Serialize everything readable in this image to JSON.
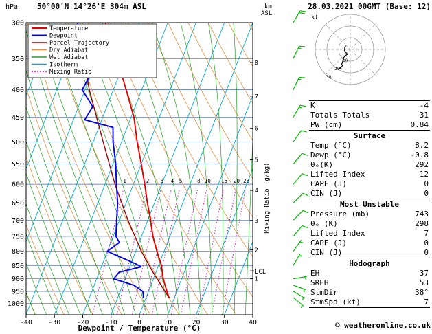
{
  "header": {
    "pressure_unit": "hPa",
    "title": "50°00'N 14°26'E 304m ASL",
    "km_label": "km",
    "asl_label": "ASL",
    "datetime": "28.03.2021 00GMT (Base: 12)"
  },
  "colors": {
    "temperature": "#e60000",
    "dewpoint": "#0000e6",
    "parcel": "#990000",
    "dry_adiabat": "#e09040",
    "wet_adiabat": "#22a022",
    "isotherm": "#00aacc",
    "mixing_ratio": "#cc00bb",
    "wind_barb": "#00bb00",
    "pressure_line": "#4466bb"
  },
  "legend": [
    {
      "label": "Temperature",
      "color": "#e60000",
      "dashed": false
    },
    {
      "label": "Dewpoint",
      "color": "#0000e6",
      "dashed": false
    },
    {
      "label": "Parcel Trajectory",
      "color": "#990000",
      "dashed": false
    },
    {
      "label": "Dry Adiabat",
      "color": "#e09040",
      "dashed": false
    },
    {
      "label": "Wet Adiabat",
      "color": "#22a022",
      "dashed": false
    },
    {
      "label": "Isotherm",
      "color": "#00aacc",
      "dashed": false
    },
    {
      "label": "Mixing Ratio",
      "color": "#cc00bb",
      "dashed": true
    }
  ],
  "axes": {
    "xlabel": "Dewpoint / Temperature (°C)",
    "x_ticks": [
      -40,
      -30,
      -20,
      -10,
      0,
      10,
      20,
      30,
      40
    ],
    "pressure_ticks": [
      300,
      350,
      400,
      450,
      500,
      550,
      600,
      650,
      700,
      750,
      800,
      850,
      900,
      950,
      1000
    ],
    "km_ticks": [
      1,
      2,
      3,
      4,
      5,
      6,
      7,
      8
    ],
    "mixing_ratio_label": "Mixing Ratio (g/kg)",
    "mixing_ratio_values": [
      1,
      2,
      3,
      4,
      5,
      8,
      10,
      15,
      20,
      25
    ],
    "lcl_label": "LCL"
  },
  "chart_data": {
    "type": "skewt-log-p",
    "pressure_range_hpa": [
      300,
      1050
    ],
    "temp_axis_range_c": [
      -40,
      40
    ],
    "lcl_pressure_hpa": 870,
    "temperature_profile": [
      [
        977,
        8.2
      ],
      [
        950,
        6.5
      ],
      [
        925,
        5
      ],
      [
        900,
        3.5
      ],
      [
        850,
        1
      ],
      [
        800,
        -2.5
      ],
      [
        750,
        -6
      ],
      [
        700,
        -9
      ],
      [
        650,
        -12.5
      ],
      [
        600,
        -16
      ],
      [
        550,
        -20
      ],
      [
        500,
        -24.5
      ],
      [
        450,
        -29
      ],
      [
        400,
        -35.5
      ],
      [
        350,
        -43
      ],
      [
        300,
        -52
      ]
    ],
    "dewpoint_profile": [
      [
        977,
        -0.8
      ],
      [
        950,
        -2
      ],
      [
        925,
        -6
      ],
      [
        900,
        -14
      ],
      [
        875,
        -13
      ],
      [
        855,
        -6
      ],
      [
        845,
        -8
      ],
      [
        800,
        -20
      ],
      [
        770,
        -17
      ],
      [
        750,
        -19
      ],
      [
        700,
        -21
      ],
      [
        650,
        -23
      ],
      [
        600,
        -26
      ],
      [
        550,
        -29
      ],
      [
        500,
        -33
      ],
      [
        470,
        -35
      ],
      [
        455,
        -46
      ],
      [
        430,
        -45
      ],
      [
        400,
        -51
      ],
      [
        370,
        -50
      ],
      [
        350,
        -58
      ],
      [
        330,
        -55
      ],
      [
        300,
        -62
      ]
    ],
    "parcel_profile": [
      [
        977,
        8.2
      ],
      [
        870,
        -1.5
      ],
      [
        800,
        -8
      ],
      [
        700,
        -17
      ],
      [
        600,
        -26.5
      ],
      [
        500,
        -36.5
      ],
      [
        400,
        -48.5
      ],
      [
        300,
        -62
      ]
    ],
    "wind_barbs": [
      {
        "p": 300,
        "dir_deg": 30,
        "speed_kt": 20
      },
      {
        "p": 350,
        "dir_deg": 25,
        "speed_kt": 15
      },
      {
        "p": 400,
        "dir_deg": 25,
        "speed_kt": 15
      },
      {
        "p": 450,
        "dir_deg": 30,
        "speed_kt": 15
      },
      {
        "p": 500,
        "dir_deg": 35,
        "speed_kt": 10
      },
      {
        "p": 550,
        "dir_deg": 40,
        "speed_kt": 10
      },
      {
        "p": 600,
        "dir_deg": 40,
        "speed_kt": 10
      },
      {
        "p": 650,
        "dir_deg": 45,
        "speed_kt": 10
      },
      {
        "p": 700,
        "dir_deg": 45,
        "speed_kt": 10
      },
      {
        "p": 750,
        "dir_deg": 40,
        "speed_kt": 10
      },
      {
        "p": 800,
        "dir_deg": 35,
        "speed_kt": 5
      },
      {
        "p": 850,
        "dir_deg": 30,
        "speed_kt": 5
      },
      {
        "p": 900,
        "dir_deg": 80,
        "speed_kt": 5
      },
      {
        "p": 925,
        "dir_deg": 110,
        "speed_kt": 5
      },
      {
        "p": 950,
        "dir_deg": 120,
        "speed_kt": 5
      },
      {
        "p": 975,
        "dir_deg": 130,
        "speed_kt": 5
      }
    ]
  },
  "hodograph": {
    "unit_label": "kt",
    "rings_kt": [
      10,
      20,
      30
    ]
  },
  "indices": {
    "sections": [
      {
        "title": null,
        "rows": [
          {
            "label": "K",
            "value": "-4"
          },
          {
            "label": "Totals Totals",
            "value": "31"
          },
          {
            "label": "PW (cm)",
            "value": "0.84"
          }
        ]
      },
      {
        "title": "Surface",
        "rows": [
          {
            "label": "Temp (°C)",
            "value": "8.2"
          },
          {
            "label": "Dewp (°C)",
            "value": "-0.8"
          },
          {
            "label": "θₑ(K)",
            "value": "292"
          },
          {
            "label": "Lifted Index",
            "value": "12"
          },
          {
            "label": "CAPE (J)",
            "value": "0"
          },
          {
            "label": "CIN (J)",
            "value": "0"
          }
        ]
      },
      {
        "title": "Most Unstable",
        "rows": [
          {
            "label": "Pressure (mb)",
            "value": "743"
          },
          {
            "label": "θₑ (K)",
            "value": "298"
          },
          {
            "label": "Lifted Index",
            "value": "7"
          },
          {
            "label": "CAPE (J)",
            "value": "0"
          },
          {
            "label": "CIN (J)",
            "value": "0"
          }
        ]
      },
      {
        "title": "Hodograph",
        "rows": [
          {
            "label": "EH",
            "value": "37"
          },
          {
            "label": "SREH",
            "value": "53"
          },
          {
            "label": "StmDir",
            "value": "38°"
          },
          {
            "label": "StmSpd (kt)",
            "value": "7"
          }
        ]
      }
    ]
  },
  "footer": {
    "copyright": "© weatheronline.co.uk"
  }
}
